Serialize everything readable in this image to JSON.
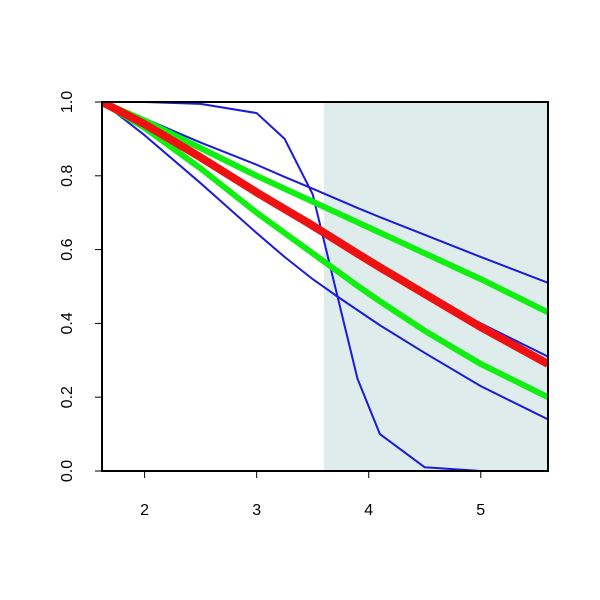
{
  "chart_data": {
    "type": "line",
    "x": [
      1.62,
      2,
      2.5,
      3,
      3.25,
      3.5,
      3.7,
      3.9,
      4.1,
      4.5,
      5,
      5.6
    ],
    "series": [
      {
        "color": "#1a1adc",
        "line_width": 2,
        "values": [
          1,
          0.955,
          0.89,
          0.83,
          0.797,
          0.765,
          0.739,
          0.713,
          0.688,
          0.64,
          0.58,
          0.51
        ]
      },
      {
        "color": "#1a1adc",
        "line_width": 2,
        "values": [
          1,
          0.935,
          0.845,
          0.75,
          0.702,
          0.655,
          0.619,
          0.583,
          0.548,
          0.48,
          0.4,
          0.31
        ]
      },
      {
        "color": "#1a1adc",
        "line_width": 2,
        "values": [
          1,
          0.91,
          0.78,
          0.645,
          0.58,
          0.52,
          0.477,
          0.436,
          0.395,
          0.32,
          0.23,
          0.14
        ]
      },
      {
        "color": "#1a1adc",
        "line_width": 2,
        "values": [
          1,
          1,
          0.995,
          0.97,
          0.9,
          0.75,
          0.5,
          0.25,
          0.1,
          0.01,
          0,
          0
        ]
      },
      {
        "color": "#11ee11",
        "line_width": 6,
        "values": [
          1,
          0.95,
          0.875,
          0.8,
          0.765,
          0.73,
          0.702,
          0.674,
          0.646,
          0.59,
          0.52,
          0.43
        ]
      },
      {
        "color": "#11ee11",
        "line_width": 6,
        "values": [
          1,
          0.93,
          0.82,
          0.7,
          0.645,
          0.59,
          0.546,
          0.502,
          0.46,
          0.38,
          0.29,
          0.2
        ]
      },
      {
        "color": "#ee1111",
        "line_width": 8,
        "values": [
          1,
          0.94,
          0.85,
          0.755,
          0.71,
          0.665,
          0.627,
          0.589,
          0.552,
          0.48,
          0.39,
          0.29
        ]
      }
    ],
    "shaded_region": {
      "from": 3.6,
      "to": 5.6,
      "color": "#deeceb"
    },
    "xlim": [
      1.62,
      5.6
    ],
    "xticks": [
      2,
      3,
      4,
      5
    ],
    "ylim": [
      0,
      1
    ],
    "yticks": [
      {
        "value": 0,
        "label": "0.0"
      },
      0.2,
      0.4,
      0.6,
      0.8,
      {
        "value": 1,
        "label": "1.0"
      }
    ]
  }
}
